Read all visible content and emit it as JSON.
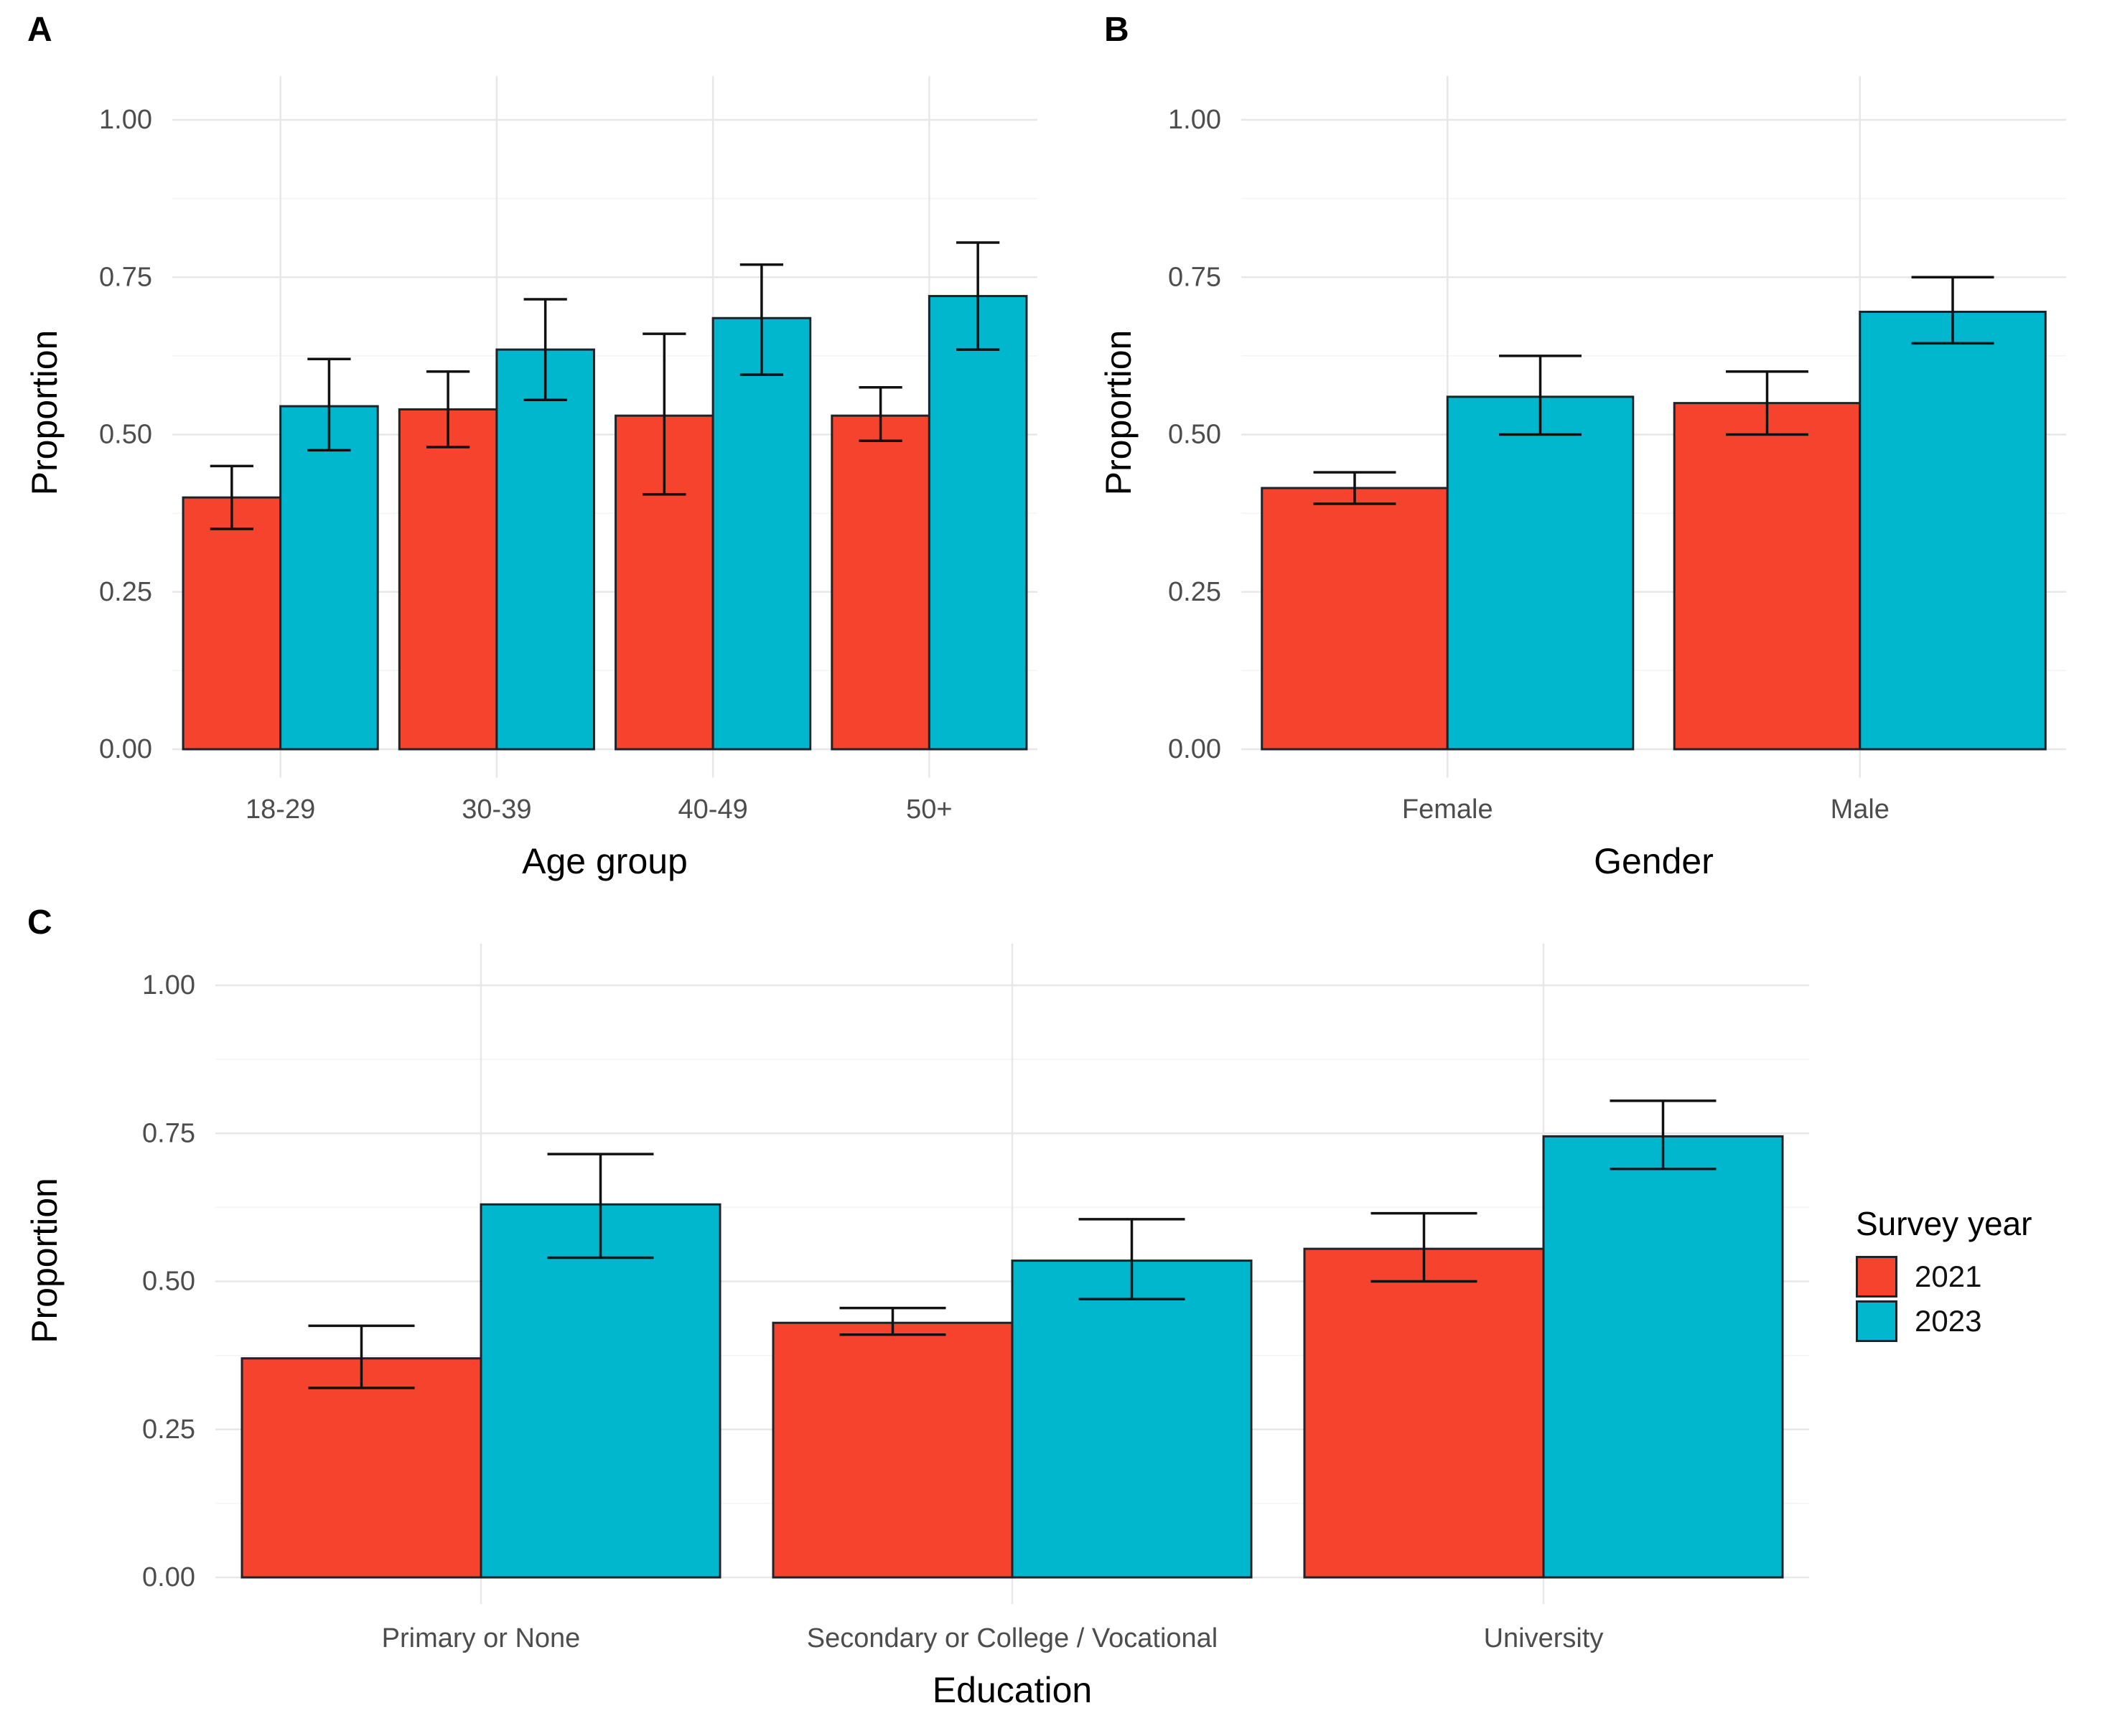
{
  "figure": {
    "panels": [
      {
        "tag": "A"
      },
      {
        "tag": "B"
      },
      {
        "tag": "C"
      }
    ]
  },
  "legend": {
    "title": "Survey year",
    "items": [
      {
        "label": "2021",
        "color": "#F5432E"
      },
      {
        "label": "2023",
        "color": "#00B7CD"
      }
    ]
  },
  "colors": {
    "series_2021": "#F5432E",
    "series_2023": "#00B7CD",
    "bar_border": "#1c2429",
    "error_bar": "#111111",
    "grid_major": "#E7E7E7",
    "grid_minor": "#F3F3F3",
    "axis_text": "#4d4d4d",
    "axis_title": "#000000",
    "background": "#FFFFFF"
  },
  "chart_data": [
    {
      "panel": "A",
      "type": "bar",
      "categories": [
        "18-29",
        "30-39",
        "40-49",
        "50+"
      ],
      "series": [
        {
          "name": "2021",
          "color": "#F5432E",
          "values": [
            0.4,
            0.54,
            0.53,
            0.53
          ],
          "ci_low": [
            0.35,
            0.48,
            0.405,
            0.49
          ],
          "ci_high": [
            0.45,
            0.6,
            0.66,
            0.575
          ]
        },
        {
          "name": "2023",
          "color": "#00B7CD",
          "values": [
            0.545,
            0.635,
            0.685,
            0.72
          ],
          "ci_low": [
            0.475,
            0.555,
            0.595,
            0.635
          ],
          "ci_high": [
            0.62,
            0.715,
            0.77,
            0.805
          ]
        }
      ],
      "xlabel": "Age group",
      "ylabel": "Proportion",
      "ylim": [
        0,
        1.07
      ],
      "yticks": [
        0,
        0.25,
        0.5,
        0.75,
        1.0
      ],
      "grid": true,
      "legend_position": "shared-right"
    },
    {
      "panel": "B",
      "type": "bar",
      "categories": [
        "Female",
        "Male"
      ],
      "series": [
        {
          "name": "2021",
          "color": "#F5432E",
          "values": [
            0.415,
            0.55
          ],
          "ci_low": [
            0.39,
            0.5
          ],
          "ci_high": [
            0.44,
            0.6
          ]
        },
        {
          "name": "2023",
          "color": "#00B7CD",
          "values": [
            0.56,
            0.695
          ],
          "ci_low": [
            0.5,
            0.645
          ],
          "ci_high": [
            0.625,
            0.75
          ]
        }
      ],
      "xlabel": "Gender",
      "ylabel": "Proportion",
      "ylim": [
        0,
        1.07
      ],
      "yticks": [
        0,
        0.25,
        0.5,
        0.75,
        1.0
      ],
      "grid": true,
      "legend_position": "shared-right"
    },
    {
      "panel": "C",
      "type": "bar",
      "categories": [
        "Primary or None",
        "Secondary or College / Vocational",
        "University"
      ],
      "series": [
        {
          "name": "2021",
          "color": "#F5432E",
          "values": [
            0.37,
            0.43,
            0.555
          ],
          "ci_low": [
            0.32,
            0.41,
            0.5
          ],
          "ci_high": [
            0.425,
            0.455,
            0.615
          ]
        },
        {
          "name": "2023",
          "color": "#00B7CD",
          "values": [
            0.63,
            0.535,
            0.745
          ],
          "ci_low": [
            0.54,
            0.47,
            0.69
          ],
          "ci_high": [
            0.715,
            0.605,
            0.805
          ]
        }
      ],
      "xlabel": "Education",
      "ylabel": "Proportion",
      "ylim": [
        0,
        1.07
      ],
      "yticks": [
        0,
        0.25,
        0.5,
        0.75,
        1.0
      ],
      "grid": true,
      "legend_position": "shared-right"
    }
  ]
}
